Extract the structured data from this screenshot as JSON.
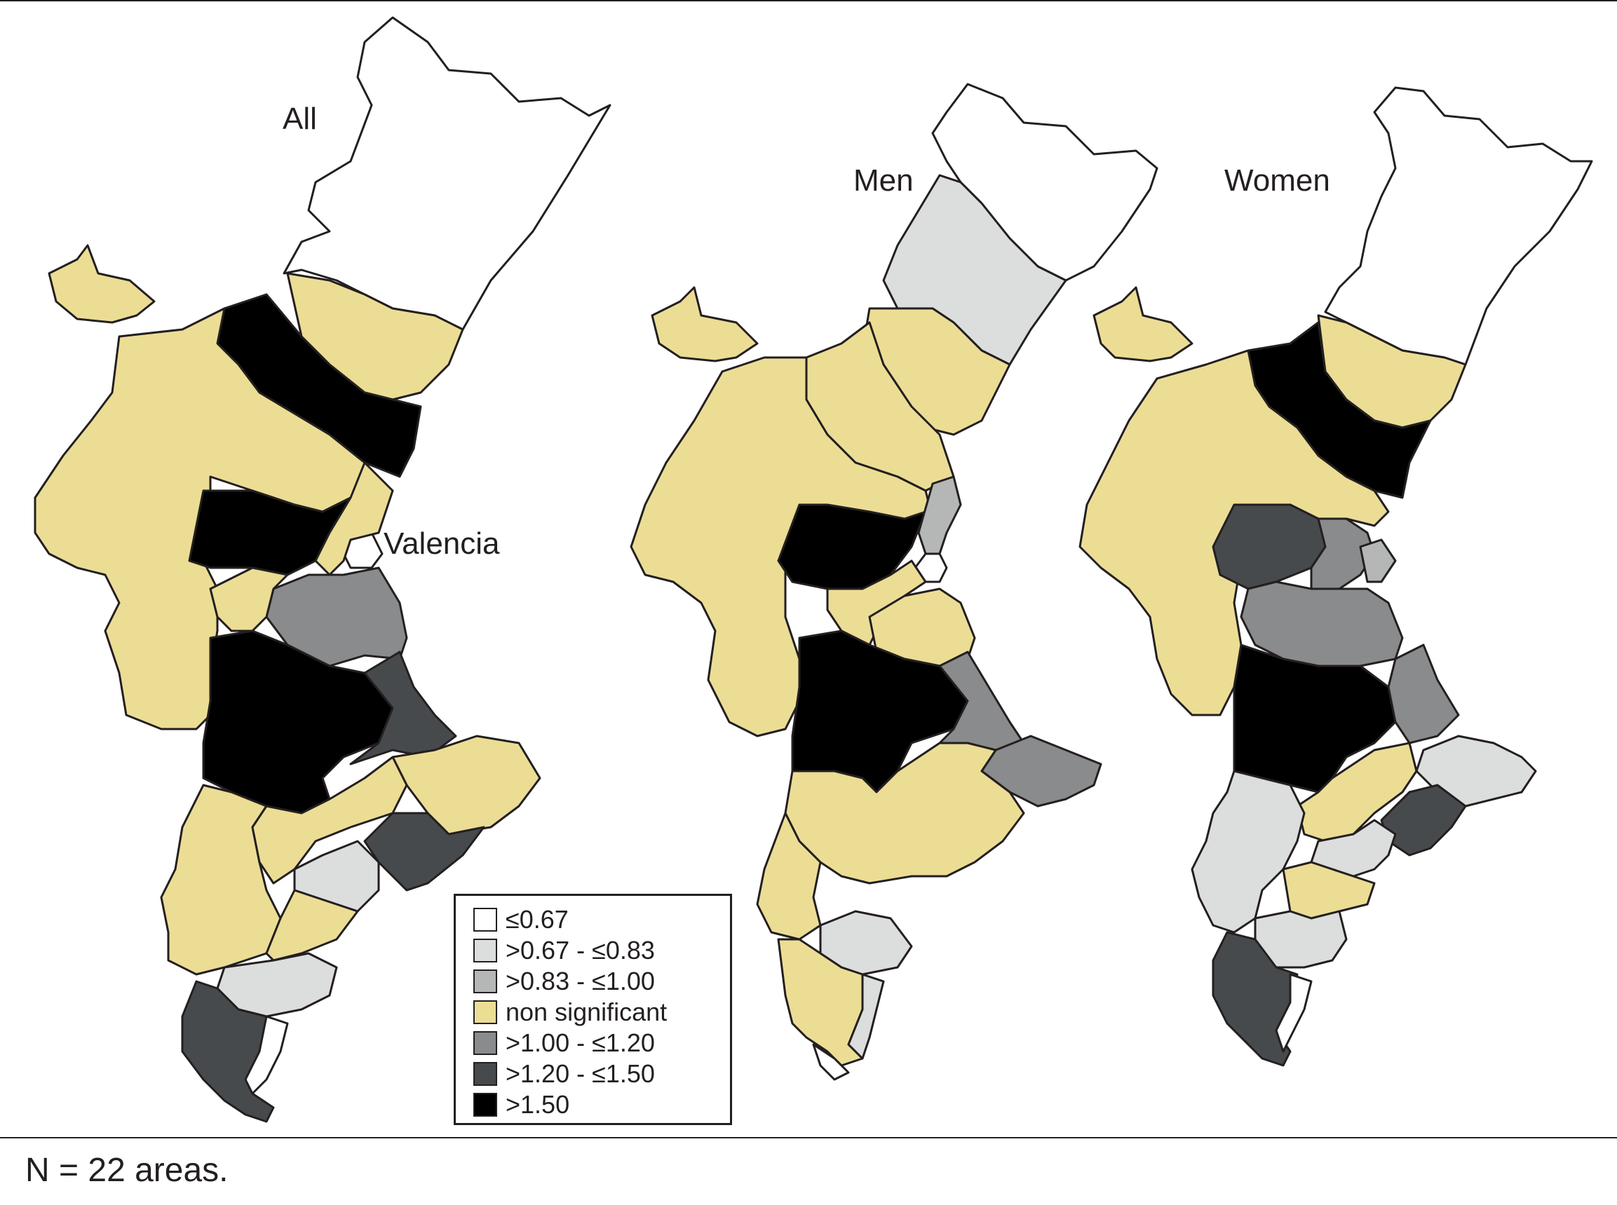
{
  "maps": [
    {
      "title": "All",
      "city_label": "Valencia"
    },
    {
      "title": "Men"
    },
    {
      "title": "Women"
    }
  ],
  "legend": {
    "items": [
      {
        "label": "≤0.67",
        "color": "#ffffff"
      },
      {
        "label": ">0.67 - ≤0.83",
        "color": "#dcdddd"
      },
      {
        "label": ">0.83 - ≤1.00",
        "color": "#b5b6b6"
      },
      {
        "label": "non significant",
        "color": "#ecdd95"
      },
      {
        "label": ">1.00 - ≤1.20",
        "color": "#898b8c"
      },
      {
        "label": ">1.20 - ≤1.50",
        "color": "#474a4c"
      },
      {
        "label": ">1.50",
        "color": "#000000"
      }
    ]
  },
  "footnote": "N = 22 areas."
}
